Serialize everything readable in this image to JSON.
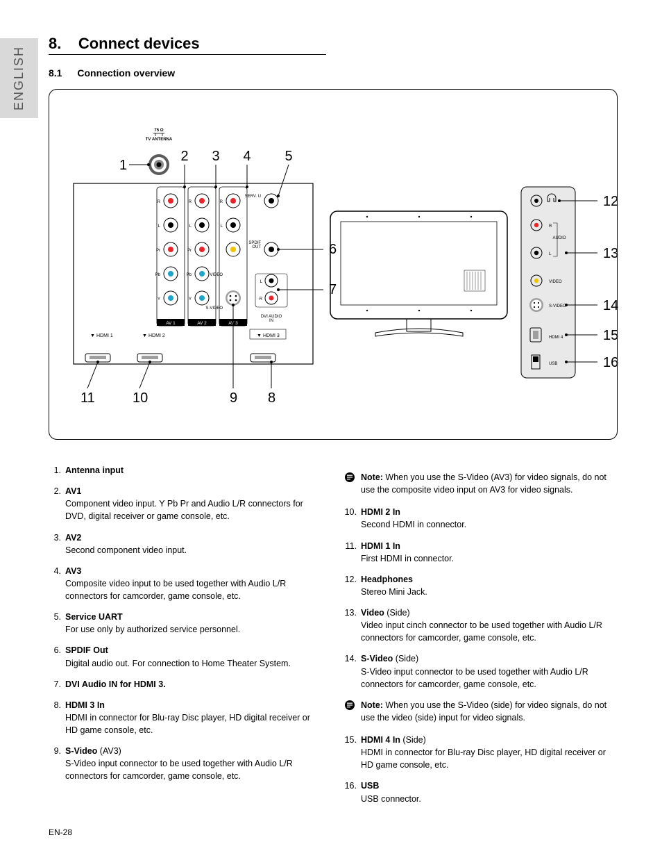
{
  "language_tab": "ENGLISH",
  "section": {
    "number": "8.",
    "title": "Connect devices"
  },
  "subsection": {
    "number": "8.1",
    "title": "Connection overview"
  },
  "diagram": {
    "antenna_label_top": "75 Ω",
    "antenna_label": "TV ANTENNA",
    "av_panels": [
      "AV 1",
      "AV 2",
      "AV 3"
    ],
    "av1_rows": [
      "R",
      "L",
      "Pr",
      "Pb",
      "Y"
    ],
    "av2_rows": [
      "R",
      "L",
      "Pr",
      "Pb",
      "Y"
    ],
    "av3_rows": [
      "R",
      "L",
      "VIDEO",
      "S-VIDEO"
    ],
    "right_col": [
      "SERV. U",
      "SPDIF OUT"
    ],
    "dvi_audio": "DVI AUDIO IN",
    "hdmi_back": [
      "HDMI 1",
      "HDMI 2",
      "HDMI 3"
    ],
    "side_panel": {
      "audio": "AUDIO",
      "r": "R",
      "l": "L",
      "video": "VIDEO",
      "svideo": "S-VIDEO",
      "hdmi4": "HDMI 4",
      "usb": "USB"
    },
    "callouts": {
      "1": "1",
      "2": "2",
      "3": "3",
      "4": "4",
      "5": "5",
      "6": "6",
      "7": "7",
      "8": "8",
      "9": "9",
      "10": "10",
      "11": "11",
      "12": "12",
      "13": "13",
      "14": "14",
      "15": "15",
      "16": "16"
    }
  },
  "items_left": [
    {
      "n": "1.",
      "term": "Antenna input",
      "suffix": "",
      "desc": ""
    },
    {
      "n": "2.",
      "term": "AV1",
      "suffix": "",
      "desc": "Component video input.  Y Pb Pr and Audio L/R connectors for DVD, digital receiver or game console, etc."
    },
    {
      "n": "3.",
      "term": "AV2",
      "suffix": "",
      "desc": "Second component video input."
    },
    {
      "n": "4.",
      "term": "AV3",
      "suffix": "",
      "desc": "Composite video input to be used together with Audio L/R connectors for camcorder, game console, etc."
    },
    {
      "n": "5.",
      "term": "Service UART",
      "suffix": "",
      "desc": "For use only by authorized service personnel."
    },
    {
      "n": "6.",
      "term": "SPDIF Out",
      "suffix": "",
      "desc": "Digital audio out. For connection to Home Theater System."
    },
    {
      "n": "7.",
      "term": "DVI Audio IN for HDMI 3.",
      "suffix": "",
      "desc": ""
    },
    {
      "n": "8.",
      "term": "HDMI 3 In",
      "suffix": "",
      "desc": "HDMI in connector for Blu-ray Disc player, HD digital receiver or HD game console, etc."
    },
    {
      "n": "9.",
      "term": "S-Video",
      "suffix": " (AV3)",
      "desc": "S-Video input connector to be used together with Audio L/R connectors for camcorder, game console, etc."
    }
  ],
  "note1": {
    "label": "Note:",
    "text": " When you use the S-Video (AV3) for video signals, do not use the composite video input on AV3 for video signals."
  },
  "items_right": [
    {
      "n": "10.",
      "term": "HDMI 2 In",
      "suffix": "",
      "desc": "Second HDMI in connector."
    },
    {
      "n": "11.",
      "term": "HDMI 1 In",
      "suffix": "",
      "desc": "First HDMI in connector."
    },
    {
      "n": "12.",
      "term": "Headphones",
      "suffix": "",
      "desc": "Stereo Mini Jack."
    },
    {
      "n": "13.",
      "term": "Video",
      "suffix": " (Side)",
      "desc": "Video input cinch connector to be used together with Audio L/R connectors for camcorder, game console, etc."
    },
    {
      "n": "14.",
      "term": "S-Video",
      "suffix": " (Side)",
      "desc": "S-Video input connector to be used together with Audio L/R connectors for camcorder, game console, etc."
    }
  ],
  "note2": {
    "label": "Note:",
    "text": " When you use the S-Video (side) for video signals, do not use the video (side) input for video signals."
  },
  "items_right2": [
    {
      "n": "15.",
      "term": "HDMI 4 In",
      "suffix": " (Side)",
      "desc": "HDMI in connector for Blu-ray Disc player, HD digital receiver or HD game console, etc."
    },
    {
      "n": "16.",
      "term": "USB",
      "suffix": "",
      "desc": "USB connector."
    }
  ],
  "footer": "EN-28"
}
